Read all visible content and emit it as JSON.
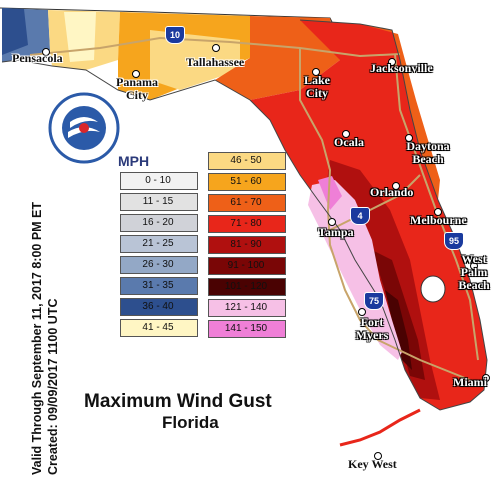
{
  "title": "Maximum Wind Gust",
  "subtitle": "Florida",
  "valid_text": "Valid Through September 11, 2017 8:00 PM ET",
  "created_text": "Created: 09/09/2017 1100 UTC",
  "logo_text": "NATIONAL WEATHER SERVICE",
  "legend": {
    "title": "MPH",
    "items": [
      {
        "label": "0 - 10",
        "color": "#f2f2f2"
      },
      {
        "label": "11 - 15",
        "color": "#e2e2e2"
      },
      {
        "label": "16 - 20",
        "color": "#d0d2d8"
      },
      {
        "label": "21 - 25",
        "color": "#b9c4d6"
      },
      {
        "label": "26 - 30",
        "color": "#93a8c6"
      },
      {
        "label": "31 - 35",
        "color": "#5a7aad"
      },
      {
        "label": "36 - 40",
        "color": "#2d4f8e"
      },
      {
        "label": "41 - 45",
        "color": "#fff6c4"
      },
      {
        "label": "46 - 50",
        "color": "#fbd983"
      },
      {
        "label": "51 - 60",
        "color": "#f6a51d"
      },
      {
        "label": "61 - 70",
        "color": "#ee6018"
      },
      {
        "label": "71 - 80",
        "color": "#e8261a"
      },
      {
        "label": "81 - 90",
        "color": "#b0100f"
      },
      {
        "label": "91 - 100",
        "color": "#7a0606"
      },
      {
        "label": "101 - 120",
        "color": "#4a0202"
      },
      {
        "label": "121 - 140",
        "color": "#f6c0e6"
      },
      {
        "label": "141 - 150",
        "color": "#ef7fd7"
      }
    ]
  },
  "cities": [
    "Pensacola",
    "Panama City",
    "Tallahassee",
    "Lake City",
    "Jacksonville",
    "Ocala",
    "Daytona Beach",
    "Orlando",
    "Tampa",
    "Melbourne",
    "West Palm Beach",
    "Fort Myers",
    "Miami",
    "Key West"
  ],
  "highways": [
    "10",
    "4",
    "95",
    "75"
  ]
}
